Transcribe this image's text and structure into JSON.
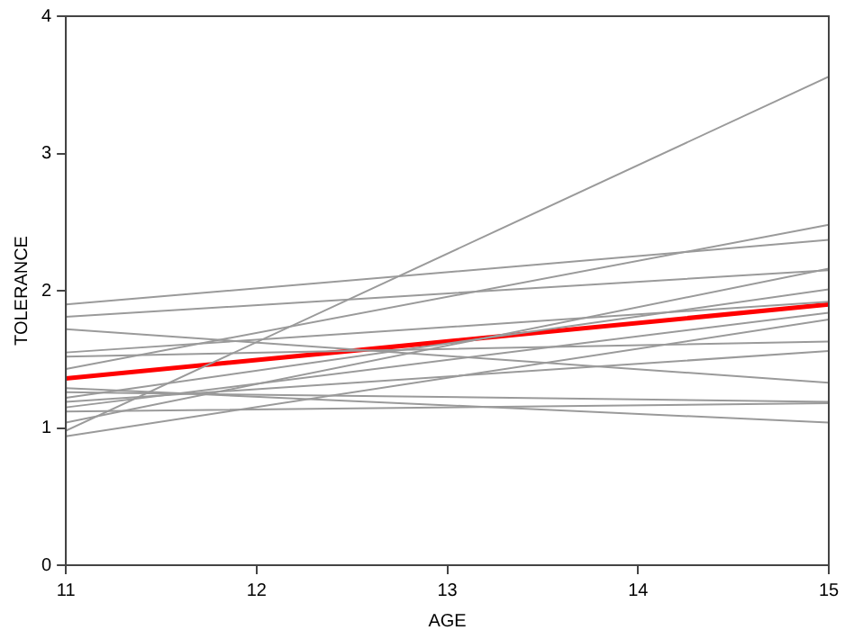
{
  "chart_data": {
    "type": "line",
    "xlabel": "AGE",
    "ylabel": "TOLERANCE",
    "xlim": [
      11,
      15
    ],
    "xticks": [
      11,
      12,
      13,
      14,
      15
    ],
    "ylim": [
      0,
      4
    ],
    "yticks": [
      0,
      1,
      2,
      3,
      4
    ],
    "grid": false,
    "legend": false,
    "marker": "none",
    "line_style": "solid",
    "x": [
      11,
      15
    ],
    "series": [
      {
        "color": "#9a9a9a",
        "values": [
          0.98,
          3.56
        ]
      },
      {
        "color": "#9a9a9a",
        "values": [
          1.43,
          2.48
        ]
      },
      {
        "color": "#9a9a9a",
        "values": [
          1.9,
          2.37
        ]
      },
      {
        "color": "#9a9a9a",
        "values": [
          1.04,
          2.16
        ]
      },
      {
        "color": "#9a9a9a",
        "values": [
          1.81,
          2.15
        ]
      },
      {
        "color": "#9a9a9a",
        "values": [
          1.22,
          2.01
        ]
      },
      {
        "color": "#9a9a9a",
        "values": [
          1.55,
          1.92
        ]
      },
      {
        "color": "#9a9a9a",
        "values": [
          1.15,
          1.84
        ]
      },
      {
        "color": "#9a9a9a",
        "values": [
          0.94,
          1.79
        ]
      },
      {
        "color": "#9a9a9a",
        "values": [
          1.52,
          1.63
        ]
      },
      {
        "color": "#9a9a9a",
        "values": [
          1.19,
          1.56
        ]
      },
      {
        "color": "#9a9a9a",
        "values": [
          1.72,
          1.33
        ]
      },
      {
        "color": "#9a9a9a",
        "values": [
          1.26,
          1.19
        ]
      },
      {
        "color": "#9a9a9a",
        "values": [
          1.12,
          1.18
        ]
      },
      {
        "color": "#9a9a9a",
        "values": [
          1.29,
          1.04
        ]
      },
      {
        "color": "#ff0000",
        "values": [
          1.36,
          1.9
        ]
      }
    ]
  }
}
